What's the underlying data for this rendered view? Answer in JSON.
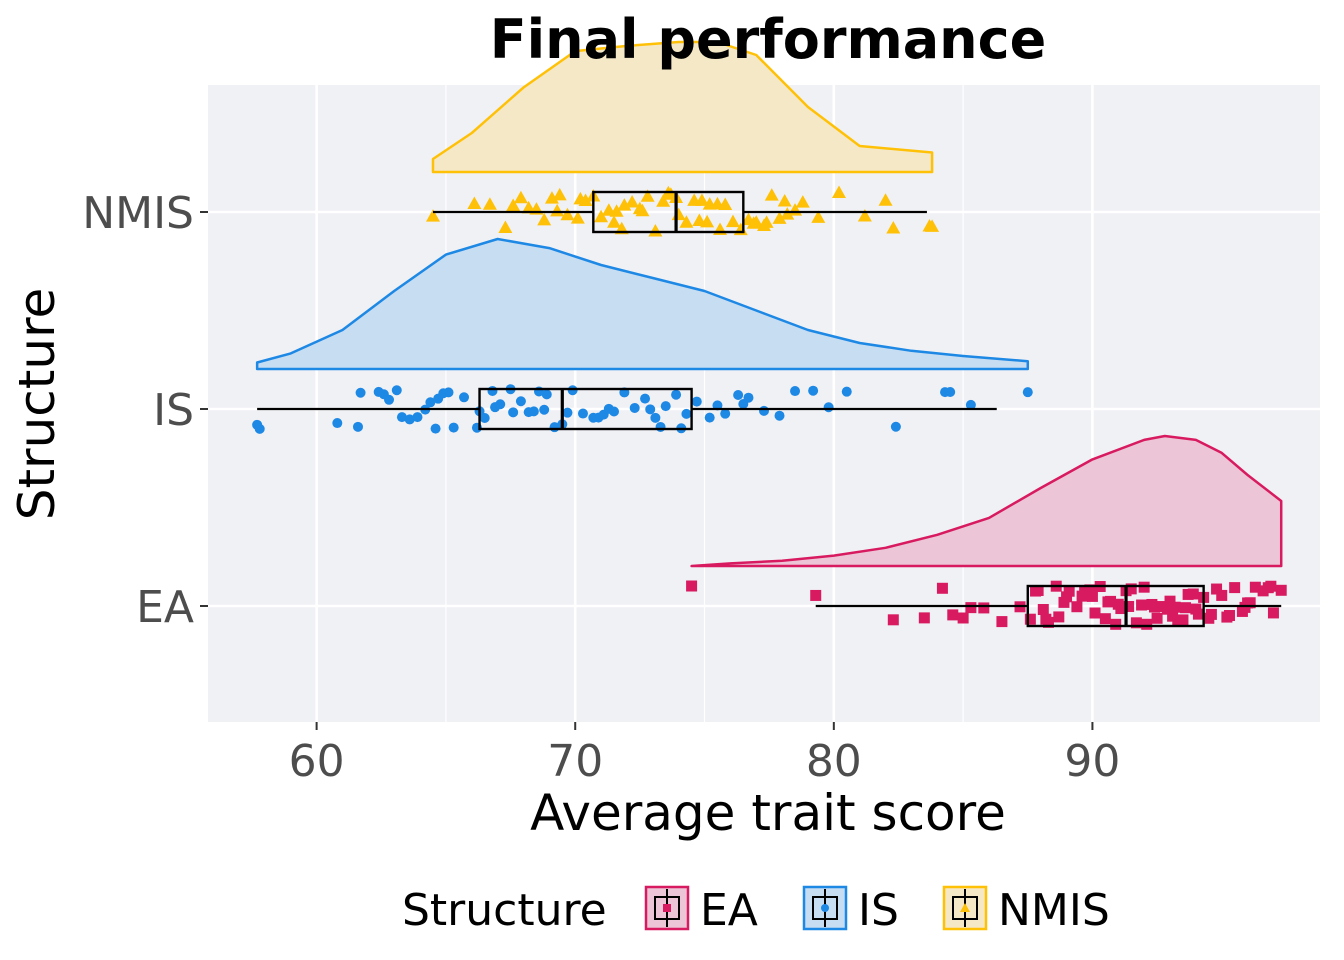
{
  "chart_data": {
    "type": "raincloud",
    "title": "Final performance",
    "xlabel": "Average trait score",
    "ylabel": "Structure",
    "xlim": [
      55.8,
      98.8
    ],
    "xticks": [
      60,
      70,
      80,
      90
    ],
    "grid": true,
    "legend": {
      "title": "Structure",
      "position": "bottom",
      "entries": [
        "EA",
        "IS",
        "NMIS"
      ]
    },
    "series": [
      {
        "name": "EA",
        "color": "#d81b60",
        "fill": "#ecc5d6",
        "marker": "square",
        "boxplot": {
          "min": 79.3,
          "q1": 87.5,
          "median": 91.3,
          "q3": 94.3,
          "max": 97.3
        },
        "density": {
          "x": [
            74.5,
            76,
            78,
            80,
            82,
            84,
            86,
            88,
            90,
            92,
            92.8,
            94,
            95,
            96,
            97.3
          ],
          "d": [
            0.0,
            0.02,
            0.04,
            0.08,
            0.14,
            0.24,
            0.37,
            0.6,
            0.82,
            0.97,
            1.0,
            0.97,
            0.87,
            0.7,
            0.5
          ]
        },
        "points": [
          74.5,
          79.3,
          82.3,
          83.5,
          84.2,
          84.6,
          85,
          85.3,
          85.8,
          86.5,
          87.2,
          87.6,
          87.8,
          88.1,
          88.3,
          88.6,
          88.9,
          89.1,
          89.4,
          89.7,
          89.9,
          90.1,
          90.3,
          90.5,
          90.7,
          90.9,
          91.1,
          91.3,
          91.5,
          91.7,
          91.9,
          92.1,
          92.3,
          92.5,
          92.7,
          92.9,
          93.1,
          93.3,
          93.5,
          93.7,
          93.9,
          94.1,
          94.3,
          94.5,
          94.8,
          95,
          95.3,
          95.5,
          95.8,
          96.1,
          96.3,
          96.6,
          96.8,
          97,
          97.3,
          88.2,
          89,
          90,
          91,
          92,
          93,
          94,
          95.2,
          96,
          88.7,
          90.6,
          92.4,
          93.6,
          87.9,
          89.6,
          91.4,
          93.2,
          94.6,
          95.9,
          96.9
        ]
      },
      {
        "name": "IS",
        "color": "#1e88e5",
        "fill": "#c6ddf2",
        "marker": "circle",
        "boxplot": {
          "min": 57.7,
          "q1": 66.3,
          "median": 69.5,
          "q3": 74.5,
          "max": 86.3
        },
        "density": {
          "x": [
            57.7,
            59,
            61,
            63,
            65,
            67,
            69,
            71,
            73,
            75,
            77,
            79,
            81,
            83,
            85,
            87.5
          ],
          "d": [
            0.05,
            0.12,
            0.3,
            0.6,
            0.88,
            1.0,
            0.93,
            0.8,
            0.7,
            0.6,
            0.45,
            0.3,
            0.2,
            0.14,
            0.1,
            0.06
          ]
        },
        "points": [
          57.7,
          57.8,
          60.8,
          61.6,
          61.7,
          62.4,
          62.6,
          62.8,
          63.3,
          63.6,
          63.9,
          64.2,
          64.4,
          64.6,
          64.9,
          65.3,
          65.7,
          66.2,
          66.5,
          66.8,
          67.1,
          67.5,
          67.9,
          68.2,
          68.6,
          68.9,
          69.2,
          69.5,
          69.9,
          70.3,
          70.7,
          71.1,
          71.5,
          71.9,
          72.3,
          72.7,
          73.1,
          73.5,
          73.9,
          74.3,
          74.7,
          75.2,
          75.8,
          76.3,
          76.7,
          77.3,
          77.9,
          78.5,
          79.2,
          79.8,
          80.5,
          82.4,
          84.3,
          84.5,
          85.3,
          87.5,
          65.1,
          66.3,
          67.6,
          68.4,
          69.7,
          71.3,
          72.9,
          74.1,
          76.5,
          63.1,
          64.7,
          66.9,
          68.8,
          70.9,
          73.3,
          75.5
        ]
      },
      {
        "name": "NMIS",
        "color": "#ffc107",
        "fill": "#f5e8c6",
        "marker": "triangle",
        "boxplot": {
          "min": 64.5,
          "q1": 70.7,
          "median": 73.9,
          "q3": 76.5,
          "max": 83.6
        },
        "density": {
          "x": [
            64.5,
            66,
            68,
            70,
            72,
            74,
            75.5,
            77,
            79,
            81,
            83.8
          ],
          "d": [
            0.1,
            0.3,
            0.65,
            0.93,
            0.97,
            1.0,
            1.0,
            0.9,
            0.5,
            0.2,
            0.15
          ]
        },
        "points": [
          64.5,
          66.1,
          66.7,
          67.3,
          67.6,
          67.9,
          68.2,
          68.5,
          68.8,
          69.1,
          69.4,
          69.7,
          70.1,
          70.4,
          70.7,
          71,
          71.3,
          71.6,
          71.9,
          72.2,
          72.5,
          72.8,
          73.1,
          73.4,
          73.7,
          74,
          74.3,
          74.6,
          74.9,
          75.2,
          75.5,
          75.8,
          76.1,
          76.4,
          76.7,
          77,
          77.3,
          77.6,
          77.9,
          78.2,
          78.5,
          78.8,
          79.4,
          80.2,
          81.2,
          82,
          82.3,
          83.7,
          83.8,
          70.2,
          71.5,
          72.6,
          73.6,
          74.8,
          75.6,
          76.9,
          78.1,
          69.3,
          71.8,
          73.9,
          75.1,
          77.4
        ]
      }
    ]
  }
}
